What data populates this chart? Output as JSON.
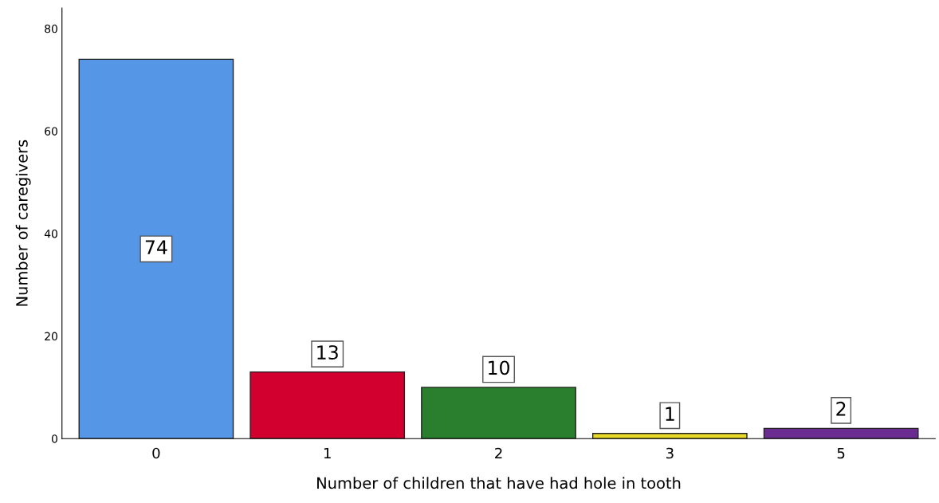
{
  "chart_data": {
    "type": "bar",
    "xlabel": "Number of children that have had hole in tooth",
    "ylabel": "Number of caregivers",
    "categories": [
      "0",
      "1",
      "2",
      "3",
      "5"
    ],
    "values": [
      74,
      13,
      10,
      1,
      2
    ],
    "colors": [
      "#5596e6",
      "#d2002f",
      "#2a7f2e",
      "#e8d929",
      "#6b2c91"
    ],
    "ylim": [
      0,
      84
    ],
    "yticks": [
      0,
      20,
      40,
      60,
      80
    ],
    "grid": false,
    "data_labels": true
  }
}
